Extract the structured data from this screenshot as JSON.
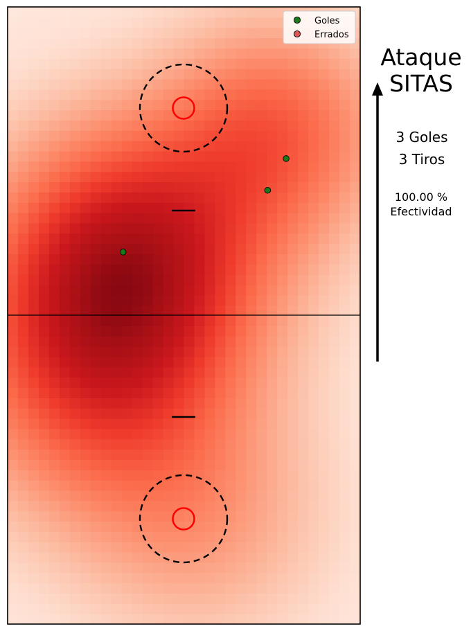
{
  "chart_data": {
    "type": "scatter",
    "title": "Ataque",
    "subtitle": "SITAS",
    "xlim": [
      0,
      40
    ],
    "ylim": [
      0,
      70
    ],
    "grid": false,
    "legend": {
      "position": "top-right",
      "entries": [
        {
          "label": "Goles",
          "color": "#1a7a1a"
        },
        {
          "label": "Errados",
          "color": "#e05555"
        }
      ]
    },
    "series": [
      {
        "name": "Goles",
        "color": "#1a7a1a",
        "points": [
          [
            13.1,
            42.2
          ],
          [
            29.5,
            49.2
          ],
          [
            31.6,
            52.8
          ]
        ]
      },
      {
        "name": "Errados",
        "color": "#e05555",
        "points": []
      }
    ],
    "heatmap": {
      "colormap": "Reds",
      "hotspots": [
        {
          "x": 13.5,
          "y": 40.5,
          "weight": 1.0,
          "spread": 11
        },
        {
          "x": 30.5,
          "y": 56,
          "weight": 0.55,
          "spread": 9
        },
        {
          "x": 9,
          "y": 26,
          "weight": 0.45,
          "spread": 11
        },
        {
          "x": 22,
          "y": 12,
          "weight": 0.3,
          "spread": 10
        }
      ]
    },
    "stats": {
      "goals_text": "3 Goles",
      "shots_text": "3 Tiros",
      "effectiveness_text": "100.00 %",
      "effectiveness_label": "Efectividad"
    },
    "attack_direction": "up"
  }
}
